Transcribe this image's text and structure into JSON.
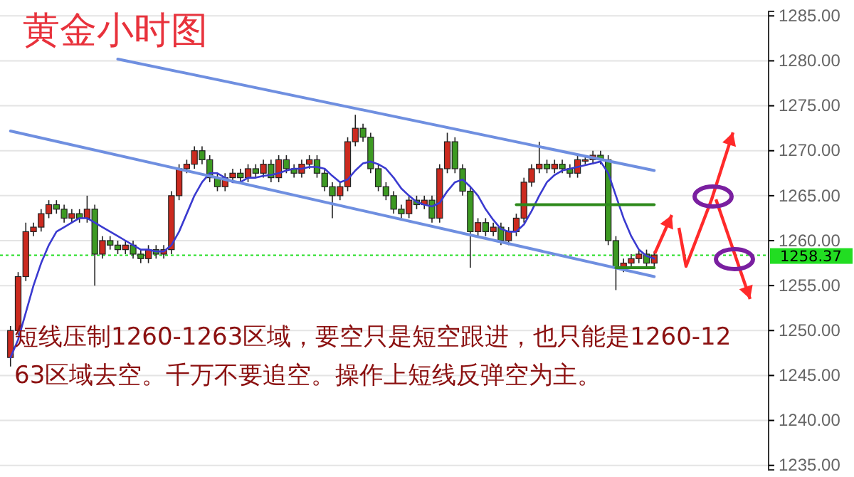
{
  "chart_data": {
    "type": "candlestick",
    "title": "黄金小时图",
    "categories": [
      null,
      null,
      null,
      null,
      null,
      null,
      null,
      null,
      null,
      null,
      null,
      null,
      null,
      null,
      null,
      null,
      null,
      null,
      null,
      null,
      null,
      null,
      null,
      null,
      null,
      null,
      null,
      null,
      null,
      null,
      null,
      null,
      null,
      null,
      null,
      null,
      null,
      null,
      null,
      null,
      null,
      null,
      null,
      null,
      null,
      null,
      null,
      null,
      null,
      null,
      null,
      null,
      null,
      null,
      null,
      null,
      null,
      null,
      null,
      null,
      null,
      null,
      null,
      null,
      null,
      null,
      null,
      null,
      null,
      null,
      null,
      null,
      null,
      null,
      null,
      null,
      null,
      null,
      null,
      null,
      null,
      null,
      null,
      null,
      null
    ],
    "colors": [
      "#cc2a1f",
      "#cc2a1f",
      "#cc2a1f",
      "#cc2a1f",
      "#cc2a1f",
      "#cc2a1f",
      "#3d9a22",
      "#3d9a22",
      "#cc2a1f",
      "#3d9a22",
      "#cc2a1f",
      "#3d9a22",
      "#cc2a1f",
      "#3d9a22",
      "#3d9a22",
      "#cc2a1f",
      "#3d9a22",
      "#3d9a22",
      "#cc2a1f",
      "#3d9a22",
      "#cc2a1f",
      "#cc2a1f",
      "#cc2a1f",
      "#cc2a1f",
      "#cc2a1f",
      "#3d9a22",
      "#3d9a22",
      "#3d9a22",
      "#cc2a1f",
      "#cc2a1f",
      "#3d9a22",
      "#cc2a1f",
      "#3d9a22",
      "#cc2a1f",
      "#3d9a22",
      "#cc2a1f",
      "#3d9a22",
      "#3d9a22",
      "#cc2a1f",
      "#cc2a1f",
      "#3d9a22",
      "#3d9a22",
      "#3d9a22",
      "#cc2a1f",
      "#cc2a1f",
      "#cc2a1f",
      "#3d9a22",
      "#3d9a22",
      "#3d9a22",
      "#3d9a22",
      "#3d9a22",
      "#3d9a22",
      "#cc2a1f",
      "#3d9a22",
      "#cc2a1f",
      "#3d9a22",
      "#cc2a1f",
      "#cc2a1f",
      "#3d9a22",
      "#3d9a22",
      "#3d9a22",
      "#cc2a1f",
      "#3d9a22",
      "#cc2a1f",
      "#3d9a22",
      "#cc2a1f",
      "#cc2a1f",
      "#cc2a1f",
      "#cc2a1f",
      "#cc2a1f",
      "#3d9a22",
      "#cc2a1f",
      "#3d9a22",
      "#3d9a22",
      "#cc2a1f",
      "#cc2a1f",
      "#cc2a1f",
      "#3d9a22",
      "#3d9a22",
      "#3d9a22",
      "#cc2a1f",
      "#cc2a1f",
      "#cc2a1f",
      "#3d9a22",
      "#cc2a1f"
    ],
    "ohlc": [
      [
        1247,
        1250.5,
        1246,
        1250
      ],
      [
        1250,
        1256.5,
        1249.5,
        1256
      ],
      [
        1256,
        1262,
        1255.5,
        1261
      ],
      [
        1261,
        1262,
        1260.5,
        1261.5
      ],
      [
        1261.5,
        1263.5,
        1261,
        1263
      ],
      [
        1263,
        1264.5,
        1262.5,
        1264
      ],
      [
        1264,
        1264.5,
        1263,
        1263.5
      ],
      [
        1263.5,
        1264,
        1262,
        1262.5
      ],
      [
        1262.5,
        1263.5,
        1262,
        1263
      ],
      [
        1263,
        1263.5,
        1262,
        1262.5
      ],
      [
        1262.5,
        1265,
        1262,
        1263.5
      ],
      [
        1263.5,
        1264,
        1255,
        1258.5
      ],
      [
        1258.5,
        1260.5,
        1258,
        1260
      ],
      [
        1260,
        1260.5,
        1259,
        1259.5
      ],
      [
        1259.5,
        1260,
        1258.5,
        1259
      ],
      [
        1259,
        1260,
        1258.5,
        1259.5
      ],
      [
        1259.5,
        1260,
        1258,
        1258.5
      ],
      [
        1258.5,
        1259,
        1257.5,
        1258
      ],
      [
        1258,
        1259.5,
        1257.5,
        1259
      ],
      [
        1259,
        1259.5,
        1258,
        1258.5
      ],
      [
        1258.5,
        1259.5,
        1258,
        1259
      ],
      [
        1259,
        1265.5,
        1258.5,
        1265
      ],
      [
        1265,
        1268.5,
        1264.5,
        1268
      ],
      [
        1268,
        1269,
        1267.5,
        1268.5
      ],
      [
        1268.5,
        1270.5,
        1268,
        1270
      ],
      [
        1270,
        1270.5,
        1268.5,
        1269
      ],
      [
        1269,
        1269.5,
        1266.5,
        1267
      ],
      [
        1267,
        1267.5,
        1265.5,
        1266
      ],
      [
        1266,
        1267.5,
        1265.5,
        1267
      ],
      [
        1267,
        1268,
        1266.5,
        1267.5
      ],
      [
        1267.5,
        1268,
        1266.5,
        1267
      ],
      [
        1267,
        1268.5,
        1266.5,
        1268
      ],
      [
        1268,
        1268.5,
        1267,
        1267.5
      ],
      [
        1267.5,
        1269,
        1267,
        1268.5
      ],
      [
        1268.5,
        1269,
        1266.5,
        1267
      ],
      [
        1267,
        1269.5,
        1266.5,
        1269
      ],
      [
        1269,
        1269.5,
        1267.5,
        1268
      ],
      [
        1268,
        1268.5,
        1267,
        1267.5
      ],
      [
        1267.5,
        1269,
        1267,
        1268.5
      ],
      [
        1268.5,
        1269.5,
        1268,
        1269
      ],
      [
        1269,
        1269.5,
        1267,
        1267.5
      ],
      [
        1267.5,
        1268,
        1265.5,
        1266
      ],
      [
        1266,
        1266.5,
        1262.5,
        1265
      ],
      [
        1265,
        1266.5,
        1264.5,
        1266
      ],
      [
        1266,
        1271.5,
        1265.5,
        1271
      ],
      [
        1271,
        1274,
        1270.5,
        1272.5
      ],
      [
        1272.5,
        1273,
        1271,
        1271.5
      ],
      [
        1271.5,
        1272,
        1267.5,
        1268
      ],
      [
        1268,
        1268.5,
        1265.5,
        1266
      ],
      [
        1266,
        1266.5,
        1264.5,
        1265
      ],
      [
        1265,
        1265.5,
        1263,
        1263.5
      ],
      [
        1263.5,
        1264,
        1262.5,
        1263
      ],
      [
        1263,
        1265,
        1262.5,
        1264.5
      ],
      [
        1264.5,
        1265,
        1263.5,
        1264
      ],
      [
        1264,
        1265,
        1263.5,
        1264.5
      ],
      [
        1264.5,
        1265,
        1262,
        1262.5
      ],
      [
        1262.5,
        1268.5,
        1262,
        1268
      ],
      [
        1268,
        1272,
        1267.5,
        1271
      ],
      [
        1271,
        1271.5,
        1267.5,
        1268
      ],
      [
        1268,
        1268.5,
        1265,
        1265.5
      ],
      [
        1265.5,
        1266,
        1257,
        1261
      ],
      [
        1261,
        1262.5,
        1260.5,
        1262
      ],
      [
        1262,
        1262.5,
        1260.5,
        1261
      ],
      [
        1261,
        1262,
        1260.5,
        1261.5
      ],
      [
        1261.5,
        1262,
        1259.5,
        1260
      ],
      [
        1260,
        1261.5,
        1259.5,
        1261
      ],
      [
        1261,
        1263,
        1260.5,
        1262.5
      ],
      [
        1262.5,
        1267,
        1262,
        1266.5
      ],
      [
        1266.5,
        1268.5,
        1266,
        1268
      ],
      [
        1268,
        1271,
        1267.5,
        1268.5
      ],
      [
        1268.5,
        1269,
        1267.5,
        1268
      ],
      [
        1268,
        1269,
        1267.5,
        1268.5
      ],
      [
        1268.5,
        1269,
        1267.5,
        1268
      ],
      [
        1268,
        1268.5,
        1267,
        1267.5
      ],
      [
        1267.5,
        1269.5,
        1267,
        1269
      ],
      [
        1269,
        1269.5,
        1268.5,
        1269
      ],
      [
        1269,
        1270,
        1268.5,
        1269.5
      ],
      [
        1269.5,
        1270,
        1268.5,
        1269
      ],
      [
        1269,
        1269.5,
        1259.5,
        1260
      ],
      [
        1260,
        1260.5,
        1254.5,
        1257
      ],
      [
        1257,
        1258,
        1256.5,
        1257.5
      ],
      [
        1257.5,
        1258.5,
        1257,
        1258
      ],
      [
        1258,
        1259,
        1257.5,
        1258.5
      ],
      [
        1258.5,
        1259,
        1257,
        1257.5
      ],
      [
        1257.5,
        1258.8,
        1257,
        1258.4
      ]
    ],
    "series": [
      {
        "type": "line",
        "color": "#3a3ad0",
        "values": [
          1247,
          1249,
          1252,
          1255,
          1257.5,
          1259.5,
          1261,
          1261.5,
          1262,
          1262.5,
          1262.5,
          1262,
          1261.5,
          1261,
          1260.5,
          1260,
          1259.5,
          1259,
          1259,
          1258.8,
          1258.8,
          1259.5,
          1261,
          1263,
          1265,
          1266.5,
          1267.5,
          1267.5,
          1267,
          1266.5,
          1266.5,
          1267,
          1267,
          1267.2,
          1267.3,
          1267.5,
          1267.8,
          1268,
          1268,
          1268.2,
          1268.2,
          1268,
          1267.2,
          1266.5,
          1266.8,
          1267.8,
          1268.6,
          1268.8,
          1268.5,
          1268,
          1267,
          1265.8,
          1265,
          1264.3,
          1264,
          1263.8,
          1264.2,
          1265.5,
          1266.5,
          1266.8,
          1266,
          1265,
          1263.5,
          1262.3,
          1261.3,
          1261,
          1261,
          1261.8,
          1263.3,
          1265,
          1266.5,
          1267.3,
          1267.8,
          1268,
          1268.2,
          1268.4,
          1268.6,
          1268.8,
          1267.5,
          1265,
          1262.5,
          1260.5,
          1259,
          1258.3,
          1258
        ]
      },
      {
        "type": "line",
        "color": "#6f8fe0",
        "values": [
          null,
          null,
          null,
          null,
          null,
          null,
          null,
          null,
          null,
          null,
          null,
          null,
          null,
          null,
          1280.2,
          null,
          null,
          null,
          null,
          null,
          null,
          null,
          null,
          null,
          null,
          null,
          null,
          null,
          null,
          null,
          null,
          null,
          null,
          null,
          null,
          null,
          null,
          null,
          null,
          null,
          null,
          null,
          null,
          null,
          null,
          null,
          null,
          null,
          null,
          null,
          null,
          null,
          null,
          null,
          null,
          null,
          null,
          null,
          null,
          null,
          null,
          null,
          null,
          null,
          null,
          null,
          null,
          null,
          null,
          null,
          null,
          null,
          null,
          null,
          null,
          null,
          null,
          null,
          null,
          null,
          null,
          null,
          null,
          null,
          1267.8
        ]
      },
      {
        "type": "line",
        "color": "#6f8fe0",
        "values": [
          1272.2,
          null,
          null,
          null,
          null,
          null,
          null,
          null,
          null,
          null,
          null,
          null,
          null,
          null,
          null,
          null,
          null,
          null,
          null,
          null,
          null,
          null,
          null,
          null,
          null,
          null,
          null,
          null,
          null,
          null,
          null,
          null,
          null,
          null,
          null,
          null,
          null,
          null,
          null,
          null,
          null,
          null,
          null,
          null,
          null,
          null,
          null,
          null,
          null,
          null,
          null,
          null,
          null,
          null,
          null,
          null,
          null,
          null,
          null,
          null,
          null,
          null,
          null,
          null,
          null,
          null,
          null,
          null,
          null,
          null,
          null,
          null,
          null,
          null,
          null,
          null,
          null,
          null,
          null,
          null,
          null,
          null,
          null,
          null,
          1256.0
        ]
      },
      {
        "type": "line",
        "color": "#2e8a1c",
        "values": [
          null,
          null,
          null,
          null,
          null,
          null,
          null,
          null,
          null,
          null,
          null,
          null,
          null,
          null,
          null,
          null,
          null,
          null,
          null,
          null,
          null,
          null,
          null,
          null,
          null,
          null,
          null,
          null,
          null,
          null,
          null,
          null,
          null,
          null,
          null,
          null,
          null,
          null,
          null,
          null,
          null,
          null,
          null,
          null,
          null,
          null,
          null,
          null,
          null,
          null,
          null,
          null,
          null,
          null,
          null,
          null,
          null,
          null,
          null,
          null,
          null,
          null,
          null,
          null,
          null,
          null,
          1264,
          null,
          null,
          null,
          null,
          null,
          null,
          null,
          null,
          null,
          null,
          null,
          null,
          null,
          null,
          null,
          null,
          null,
          1264
        ]
      },
      {
        "type": "line",
        "color": "#2e8a1c",
        "values": [
          null,
          null,
          null,
          null,
          null,
          null,
          null,
          null,
          null,
          null,
          null,
          null,
          null,
          null,
          null,
          null,
          null,
          null,
          null,
          null,
          null,
          null,
          null,
          null,
          null,
          null,
          null,
          null,
          null,
          null,
          null,
          null,
          null,
          null,
          null,
          null,
          null,
          null,
          null,
          null,
          null,
          null,
          null,
          null,
          null,
          null,
          null,
          null,
          null,
          null,
          null,
          null,
          null,
          null,
          null,
          null,
          null,
          null,
          null,
          null,
          null,
          null,
          null,
          null,
          null,
          null,
          null,
          null,
          null,
          null,
          null,
          null,
          null,
          null,
          null,
          null,
          null,
          null,
          null,
          1257,
          null,
          null,
          null,
          null,
          1257
        ]
      }
    ],
    "ylim": [
      1234.5,
      1285.5
    ],
    "yticks": [
      {
        "value": 1235,
        "label": "1235.00"
      },
      {
        "value": 1240,
        "label": "1240.00"
      },
      {
        "value": 1245,
        "label": "1245.00"
      },
      {
        "value": 1250,
        "label": "1250.00"
      },
      {
        "value": 1255,
        "label": "1255.00"
      },
      {
        "value": 1260,
        "label": "1260.00"
      },
      {
        "value": 1265,
        "label": "1265.00"
      },
      {
        "value": 1270,
        "label": "1270.00"
      },
      {
        "value": 1275,
        "label": "1275.00"
      },
      {
        "value": 1280,
        "label": "1280.00"
      },
      {
        "value": 1285,
        "label": "1285.00"
      }
    ],
    "grid": "y",
    "tick_labels": "y",
    "ref_lines": [
      {
        "axis": "y",
        "value": 1258.37,
        "label": "1258.37",
        "color": "#22dd22",
        "line_style": "dotted"
      }
    ],
    "annotations": [
      "短线压制1260-1263区域，要空只是短空跟进，也只能是1260-1263区域去空。千万不要追空。操作上短线反弹空为主。"
    ]
  }
}
